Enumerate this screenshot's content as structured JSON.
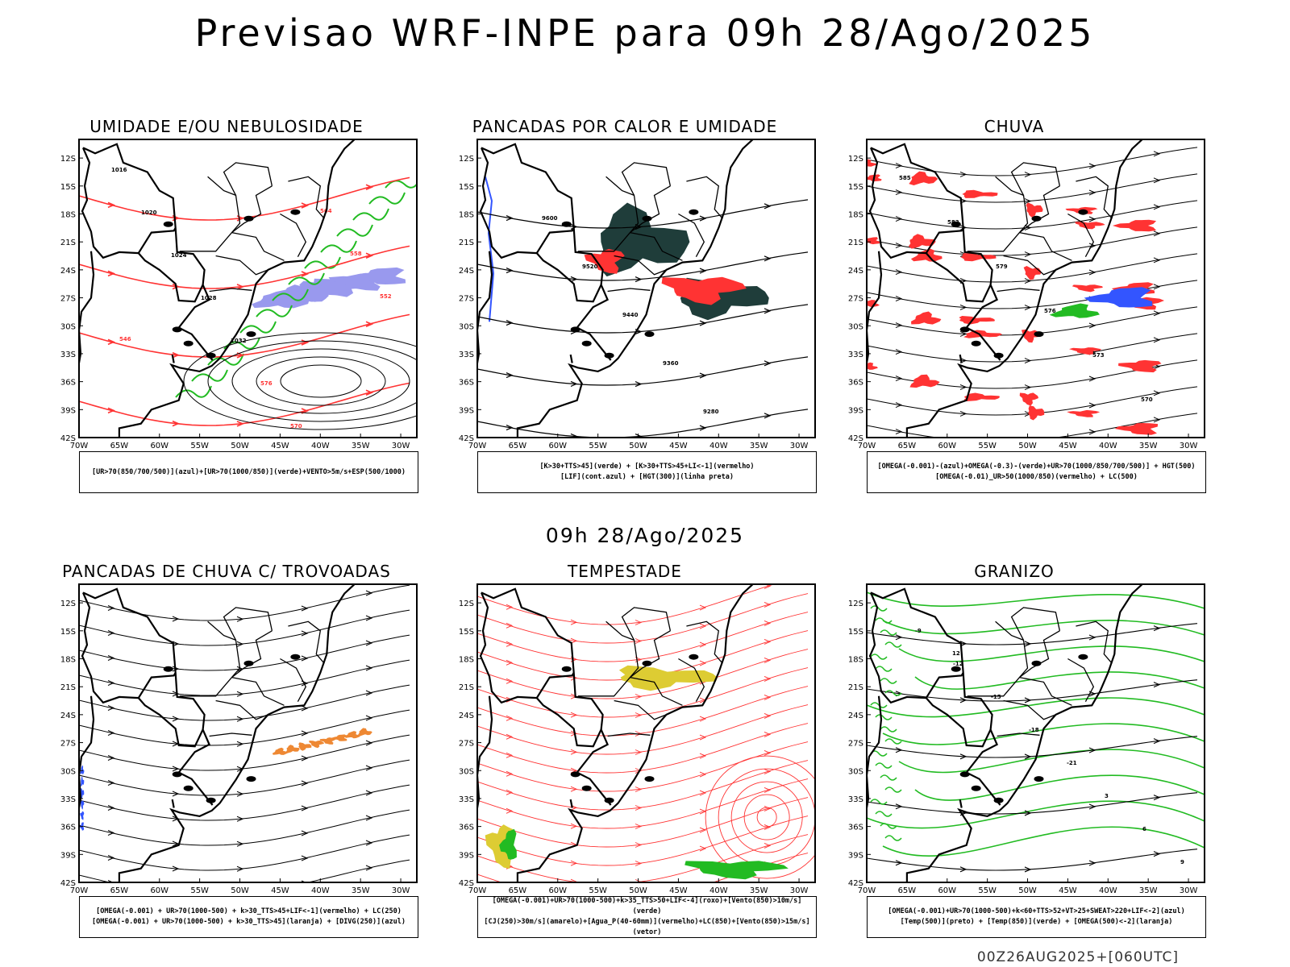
{
  "title": "Previsao WRF-INPE  para 09h 28/Ago/2025",
  "mid_title": "09h 28/Ago/2025",
  "footer": "00Z26AUG2025+[060UTC]",
  "axes": {
    "lat_labels": [
      "12S",
      "15S",
      "18S",
      "21S",
      "24S",
      "27S",
      "30S",
      "33S",
      "36S",
      "39S",
      "42S"
    ],
    "lon_labels": [
      "70W",
      "65W",
      "60W",
      "55W",
      "50W",
      "45W",
      "40W",
      "35W",
      "30W"
    ]
  },
  "colors": {
    "green": "#22bb22",
    "red": "#ff3333",
    "blue": "#3355ff",
    "darkteal": "#1f3d3a",
    "yellow": "#ddcc33",
    "orange": "#ee8833",
    "lavender": "#9999ee"
  },
  "panels": [
    {
      "title": "UMIDADE E/OU NEBULOSIDADE",
      "legend": [
        "[UR>70(850/700/500)](azul)+[UR>70(1000/850)](verde)+VENTO>5m/s+ESP(500/1000)"
      ],
      "contour_labels": [
        "1016",
        "1020",
        "1024",
        "1028",
        "1032",
        "576",
        "570",
        "564",
        "558",
        "552",
        "546"
      ]
    },
    {
      "title": "PANCADAS POR CALOR E UMIDADE",
      "legend": [
        "[K>30+TTS>45](verde) + [K>30+TTS>45+LI<-1](vermelho)",
        "[LIF](cont.azul) + [HGT(300)](linha preta)"
      ],
      "contour_labels": [
        "9600",
        "9520",
        "9440",
        "9360",
        "9280"
      ]
    },
    {
      "title": "CHUVA",
      "legend": [
        "[OMEGA(-0.001)-(azul)+OMEGA(-0.3)-(verde)+UR>70(1000/850/700/500)] + HGT(500)",
        "[OMEGA(-0.01)_UR>50(1000/850)(vermelho) + LC(500)"
      ],
      "contour_labels": [
        "585",
        "582",
        "579",
        "576",
        "573",
        "570"
      ]
    },
    {
      "title": "PANCADAS DE CHUVA C/ TROVOADAS",
      "legend": [
        "[OMEGA(-0.001) + UR>70(1000-500) + k>30_TTS>45+LIF<-1](vermelho) + LC(250)",
        "[OMEGA(-0.001) + UR>70(1000-500) + k>30_TTS>45](laranja) + [DIVG(250)](azul)"
      ],
      "contour_labels": []
    },
    {
      "title": "TEMPESTADE",
      "legend": [
        "[OMEGA(-0.001)+UR>70(1000-500)+k>35_TTS>50+LIF<-4](roxo)+[Vento(850)>10m/s](verde)",
        "[CJ(250)>30m/s](amarelo)+[Agua_P(40-60mm)](vermelho)+LC(850)+[Vento(850)>15m/s](vetor)"
      ],
      "contour_labels": []
    },
    {
      "title": "GRANIZO",
      "legend": [
        "[OMEGA(-0.001)+UR>70(1000-500)+k<60+TTS>52+VT>25+SWEAT>220+LIF<-2](azul)",
        "[Temp(500)](preto) + [Temp(850)](verde) + [OMEGA(500)<-2](laranja)"
      ],
      "contour_labels": [
        "-9",
        "-12",
        "-15",
        "-18",
        "-21",
        "3",
        "6",
        "9",
        "12"
      ]
    }
  ]
}
